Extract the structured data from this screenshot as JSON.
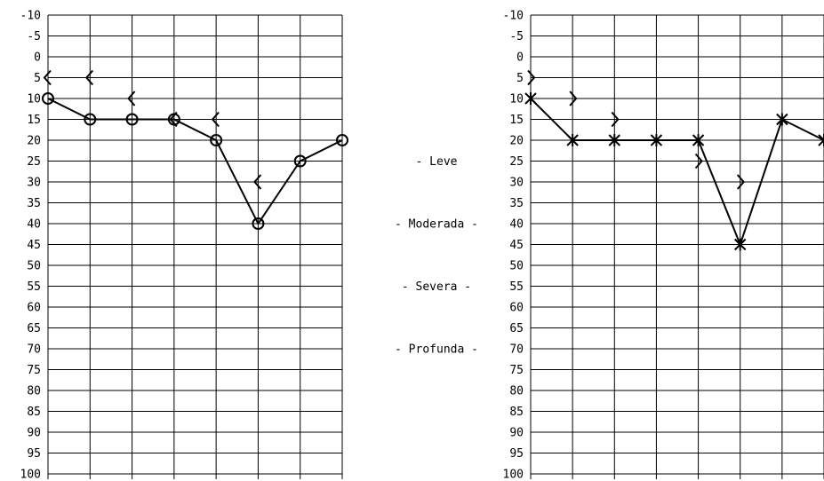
{
  "chart_data": [
    {
      "type": "line",
      "y_ticks": [
        -10,
        -5,
        0,
        5,
        10,
        15,
        20,
        25,
        30,
        35,
        40,
        45,
        50,
        55,
        60,
        65,
        70,
        75,
        80,
        85,
        90,
        95,
        100
      ],
      "ylim": [
        -10,
        100
      ],
      "y_reversed": true,
      "grid": true,
      "series": [
        {
          "marker": "circle",
          "connected": true,
          "values": [
            10,
            15,
            15,
            15,
            20,
            40,
            25,
            20
          ]
        },
        {
          "marker": "chevron-left",
          "connected": false,
          "values": [
            5,
            5,
            10,
            15,
            15,
            30,
            null,
            null
          ]
        }
      ]
    },
    {
      "type": "line",
      "y_ticks": [
        -10,
        -5,
        0,
        5,
        10,
        15,
        20,
        25,
        30,
        35,
        40,
        45,
        50,
        55,
        60,
        65,
        70,
        75,
        80,
        85,
        90,
        95,
        100
      ],
      "ylim": [
        -10,
        100
      ],
      "y_reversed": true,
      "grid": true,
      "series": [
        {
          "marker": "cross",
          "connected": true,
          "values": [
            10,
            20,
            20,
            20,
            20,
            45,
            15,
            20
          ]
        },
        {
          "marker": "chevron-right",
          "connected": false,
          "values": [
            5,
            10,
            15,
            null,
            25,
            30,
            null,
            null
          ]
        }
      ]
    }
  ],
  "scale_labels": [
    {
      "text": "- Leve",
      "level": 25
    },
    {
      "text": "- Moderada -",
      "level": 40
    },
    {
      "text": "- Severa -",
      "level": 55
    },
    {
      "text": "- Profunda -",
      "level": 70
    }
  ]
}
